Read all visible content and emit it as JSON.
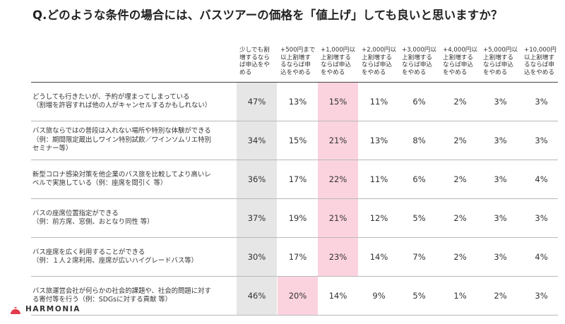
{
  "title": "Q.どのような条件の場合には、バスツアーの価格を「値上げ」しても良いと思いますか？",
  "logo_text": "HARMONIA",
  "colors": {
    "gray_highlight": "#e6e6e6",
    "pink_highlight": "#fbd3de",
    "logo_red": "#e03a4b"
  },
  "chart_data": {
    "type": "table",
    "title": "Q.どのような条件の場合には、バスツアーの価格を「値上げ」しても良いと思いますか？",
    "columns": [
      "少しでも割\n増するなら\nば申込をや\nめる",
      "+500円まで\n以上割増す\nるならば申\n込をやめる",
      "+1,000円以\n上割増する\nならば申込\nをやめる",
      "+2,000円以\n上割増する\nならば申込\nをやめる",
      "+3,000円以\n上割増する\nならば申込\nをやめる",
      "+4,000円以\n上割増する\nならば申込\nをやめる",
      "+5,000円以\n上割増する\nならば申込\nをやめる",
      "+10,000円\n以上割増す\nるならば申\n込をやめる"
    ],
    "rows": [
      {
        "label": "どうしても行きたいが、予約が埋まってしまっている\n（割増を許容すれば他の人がキャンセルするかもしれない）",
        "values": [
          "47%",
          "13%",
          "15%",
          "11%",
          "6%",
          "2%",
          "3%",
          "3%"
        ],
        "highlight": [
          "gray",
          "",
          "pink",
          "",
          "",
          "",
          "",
          ""
        ]
      },
      {
        "label": "バス旅ならではの普段は入れない場所や特別な体験ができる\n（例：期間限定蔵出しワイン特別試飲／ワインソムリエ特別\nセミナー等）",
        "values": [
          "34%",
          "15%",
          "21%",
          "13%",
          "8%",
          "2%",
          "3%",
          "3%"
        ],
        "highlight": [
          "gray",
          "",
          "pink",
          "",
          "",
          "",
          "",
          ""
        ]
      },
      {
        "label": "新型コロナ感染対策を他企業のバス旅を比較してより高いレ\nベルで実施している（例：座席を間引く 等）",
        "values": [
          "36%",
          "17%",
          "22%",
          "11%",
          "6%",
          "2%",
          "3%",
          "4%"
        ],
        "highlight": [
          "gray",
          "",
          "pink",
          "",
          "",
          "",
          "",
          ""
        ]
      },
      {
        "label": "バスの座席位置指定ができる\n（例：前方席、窓側、おとなり同性 等）",
        "values": [
          "37%",
          "19%",
          "21%",
          "12%",
          "5%",
          "2%",
          "3%",
          "3%"
        ],
        "highlight": [
          "gray",
          "",
          "pink",
          "",
          "",
          "",
          "",
          ""
        ]
      },
      {
        "label": "バス座席を広く利用することができる\n（例：１人２席利用、座席が広いハイグレードバス等）",
        "values": [
          "30%",
          "17%",
          "23%",
          "14%",
          "7%",
          "2%",
          "3%",
          "4%"
        ],
        "highlight": [
          "gray",
          "",
          "pink",
          "",
          "",
          "",
          "",
          ""
        ]
      },
      {
        "label": "バス旅運営会社が何らかの社会的課題や、社会的問題に対す\nる寄付等を行う（例：SDGsに対する貢献 等）",
        "values": [
          "46%",
          "20%",
          "14%",
          "9%",
          "5%",
          "1%",
          "2%",
          "3%"
        ],
        "highlight": [
          "gray",
          "pink",
          "",
          "",
          "",
          "",
          "",
          ""
        ]
      }
    ]
  }
}
